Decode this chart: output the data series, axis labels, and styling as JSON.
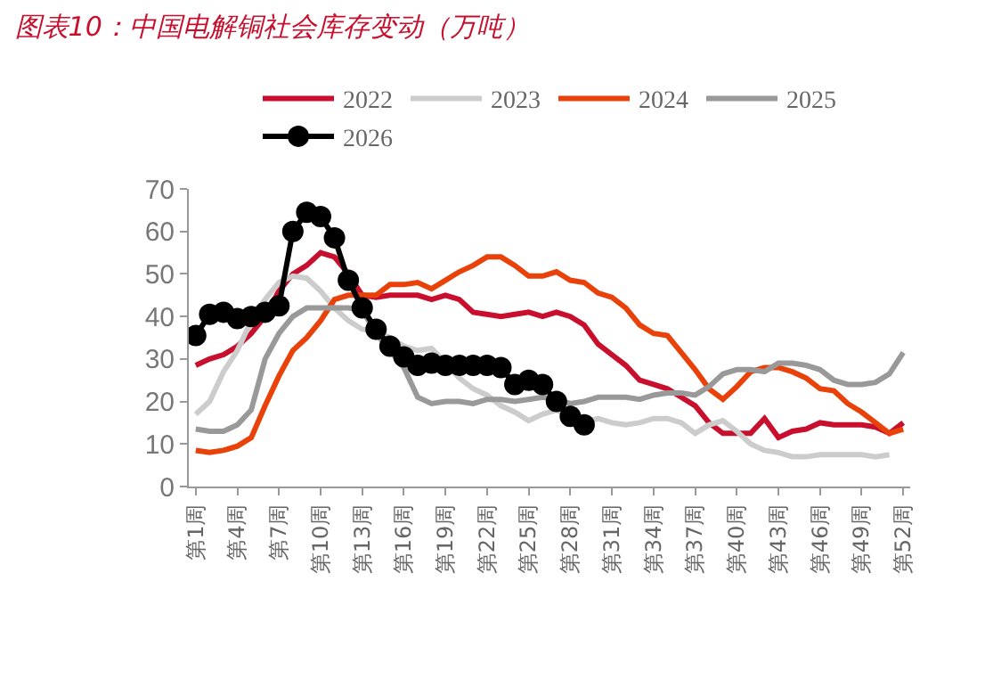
{
  "chart_data": {
    "type": "line",
    "title": "图表10：中国电解铜社会库存变动（万吨）",
    "categories": [
      "第1周",
      null,
      null,
      "第4周",
      null,
      null,
      "第7周",
      null,
      null,
      "第10周",
      null,
      null,
      "第13周",
      null,
      null,
      "第16周",
      null,
      null,
      "第19周",
      null,
      null,
      "第22周",
      null,
      null,
      "第25周",
      null,
      null,
      "第28周",
      null,
      null,
      "第31周",
      null,
      null,
      "第34周",
      null,
      null,
      "第37周",
      null,
      null,
      "第40周",
      null,
      null,
      "第43周",
      null,
      null,
      "第46周",
      null,
      null,
      "第49周",
      null,
      null,
      "第52周"
    ],
    "series": [
      {
        "name": "2022",
        "color": "#c8102e",
        "marker": "none",
        "values": [
          28.5,
          30,
          31,
          33,
          36,
          40,
          46,
          50,
          52,
          55,
          54,
          50,
          45,
          44.5,
          45,
          45,
          45,
          44,
          45,
          44,
          41,
          40.5,
          40,
          40.5,
          41,
          40,
          41,
          40,
          38,
          33.5,
          31,
          28.5,
          25,
          24,
          23,
          21,
          19,
          15,
          12.5,
          12.5,
          12.5,
          16,
          11.5,
          13,
          13.5,
          15,
          14.5,
          14.5,
          14.5,
          14,
          12.5,
          15
        ]
      },
      {
        "name": "2023",
        "color": "#cccccc",
        "marker": "none",
        "values": [
          17,
          20,
          27,
          32,
          39,
          44,
          48,
          49.5,
          49,
          46,
          42,
          39,
          37,
          36.5,
          35,
          33,
          32,
          32.5,
          29,
          25.5,
          23,
          21.5,
          19,
          17.5,
          15.5,
          17,
          18,
          16.5,
          15,
          16,
          15,
          14.5,
          15,
          16,
          16,
          15,
          12.5,
          14.5,
          15.5,
          13,
          10,
          8.5,
          8,
          7,
          7,
          7.5,
          7.5,
          7.5,
          7.5,
          7,
          7.5,
          null
        ]
      },
      {
        "name": "2024",
        "color": "#e8420a",
        "marker": "none",
        "values": [
          8.5,
          8,
          8.5,
          9.5,
          11.5,
          19,
          26,
          32,
          35,
          39,
          44,
          45,
          45,
          45,
          47.5,
          47.5,
          48,
          46.5,
          48.5,
          50.5,
          52,
          54,
          54,
          52,
          49.5,
          49.5,
          50.5,
          48.5,
          48,
          45.5,
          44.5,
          42,
          38,
          36,
          35.5,
          31.5,
          27.5,
          23,
          20.5,
          23.5,
          27,
          28,
          28,
          27,
          25.5,
          23,
          22.5,
          19.5,
          17.5,
          15,
          12.5,
          13.5
        ]
      },
      {
        "name": "2025",
        "color": "#999999",
        "marker": "none",
        "values": [
          13.5,
          13,
          13,
          14.5,
          18,
          30,
          36,
          40,
          42,
          42,
          42,
          42,
          41.5,
          36,
          32,
          28,
          21,
          19.5,
          20,
          20,
          19.5,
          20.5,
          20.5,
          20,
          20.5,
          21,
          20.5,
          19.5,
          20,
          21,
          21,
          21,
          20.5,
          21.5,
          22,
          22,
          21.5,
          23.5,
          26.5,
          27.5,
          27.5,
          27,
          29,
          29,
          28.5,
          27.5,
          25,
          24,
          24,
          24.5,
          26.5,
          31.5
        ]
      },
      {
        "name": "2026",
        "color": "#000000",
        "marker": "circle",
        "values": [
          35.5,
          40.5,
          41,
          39.5,
          40,
          41,
          42.5,
          60,
          64.5,
          63.5,
          58.5,
          48.5,
          42,
          37,
          33,
          30.5,
          28.5,
          29,
          28.5,
          28.5,
          28.5,
          28.5,
          28,
          24,
          25,
          24,
          20,
          16.5,
          14.5,
          null,
          null,
          null,
          null,
          null,
          null,
          null,
          null,
          null,
          null,
          null,
          null,
          null,
          null,
          null,
          null,
          null,
          null,
          null,
          null,
          null,
          null,
          null
        ]
      }
    ],
    "ylim": [
      0,
      70
    ],
    "yticks": [
      0,
      10,
      20,
      30,
      40,
      50,
      60,
      70
    ],
    "grid": false,
    "legend": "top"
  }
}
